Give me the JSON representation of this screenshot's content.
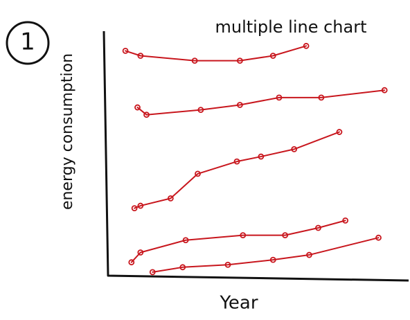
{
  "chart_data": {
    "type": "line",
    "title": "multiple line chart",
    "annotation": "1",
    "xlabel": "Year",
    "ylabel": "energy consumption",
    "xlim": [
      0,
      100
    ],
    "ylim": [
      0,
      100
    ],
    "series": [
      {
        "color": "#c8161d",
        "x": [
          6,
          11,
          29,
          44,
          55,
          66
        ],
        "values": [
          92,
          90,
          88,
          88,
          90,
          94
        ]
      },
      {
        "color": "#c8161d",
        "x": [
          10,
          13,
          31,
          44,
          57,
          71,
          92
        ],
        "values": [
          69,
          66,
          68,
          70,
          73,
          73,
          76
        ]
      },
      {
        "color": "#c8161d",
        "x": [
          9,
          11,
          21,
          30,
          43,
          51,
          62,
          77
        ],
        "values": [
          28,
          29,
          32,
          42,
          47,
          49,
          52,
          59
        ]
      },
      {
        "color": "#c8161d",
        "x": [
          8,
          11,
          26,
          45,
          59,
          70,
          79
        ],
        "values": [
          6,
          10,
          15,
          17,
          17,
          20,
          23
        ]
      },
      {
        "color": "#c8161d",
        "x": [
          15,
          25,
          40,
          55,
          67,
          90
        ],
        "values": [
          2,
          4,
          5,
          7,
          9,
          16
        ]
      }
    ]
  }
}
